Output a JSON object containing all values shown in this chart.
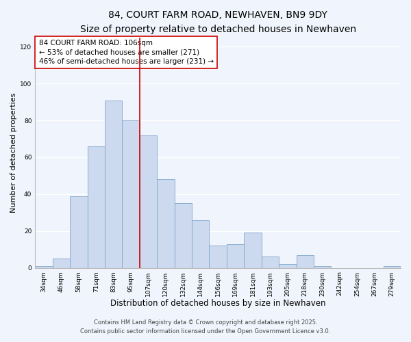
{
  "title": "84, COURT FARM ROAD, NEWHAVEN, BN9 9DY",
  "subtitle": "Size of property relative to detached houses in Newhaven",
  "xlabel": "Distribution of detached houses by size in Newhaven",
  "ylabel": "Number of detached properties",
  "bar_color": "#ccd9ee",
  "bar_edge_color": "#7ea6cc",
  "background_color": "#f0f4fc",
  "grid_color": "#ffffff",
  "categories": [
    "34sqm",
    "46sqm",
    "58sqm",
    "71sqm",
    "83sqm",
    "95sqm",
    "107sqm",
    "120sqm",
    "132sqm",
    "144sqm",
    "156sqm",
    "169sqm",
    "181sqm",
    "193sqm",
    "205sqm",
    "218sqm",
    "230sqm",
    "242sqm",
    "254sqm",
    "267sqm",
    "279sqm"
  ],
  "values": [
    1,
    5,
    39,
    66,
    91,
    80,
    72,
    48,
    35,
    26,
    12,
    13,
    19,
    6,
    2,
    7,
    1,
    0,
    0,
    0,
    1
  ],
  "vline_x_index": 5.5,
  "vline_color": "#cc0000",
  "annotation_line1": "84 COURT FARM ROAD: 106sqm",
  "annotation_line2": "← 53% of detached houses are smaller (271)",
  "annotation_line3": "46% of semi-detached houses are larger (231) →",
  "ylim": [
    0,
    125
  ],
  "yticks": [
    0,
    20,
    40,
    60,
    80,
    100,
    120
  ],
  "footer_line1": "Contains HM Land Registry data © Crown copyright and database right 2025.",
  "footer_line2": "Contains public sector information licensed under the Open Government Licence v3.0.",
  "title_fontsize": 10,
  "subtitle_fontsize": 8.5,
  "xlabel_fontsize": 8.5,
  "ylabel_fontsize": 8,
  "tick_fontsize": 6.5,
  "annotation_fontsize": 7.5,
  "footer_fontsize": 6
}
